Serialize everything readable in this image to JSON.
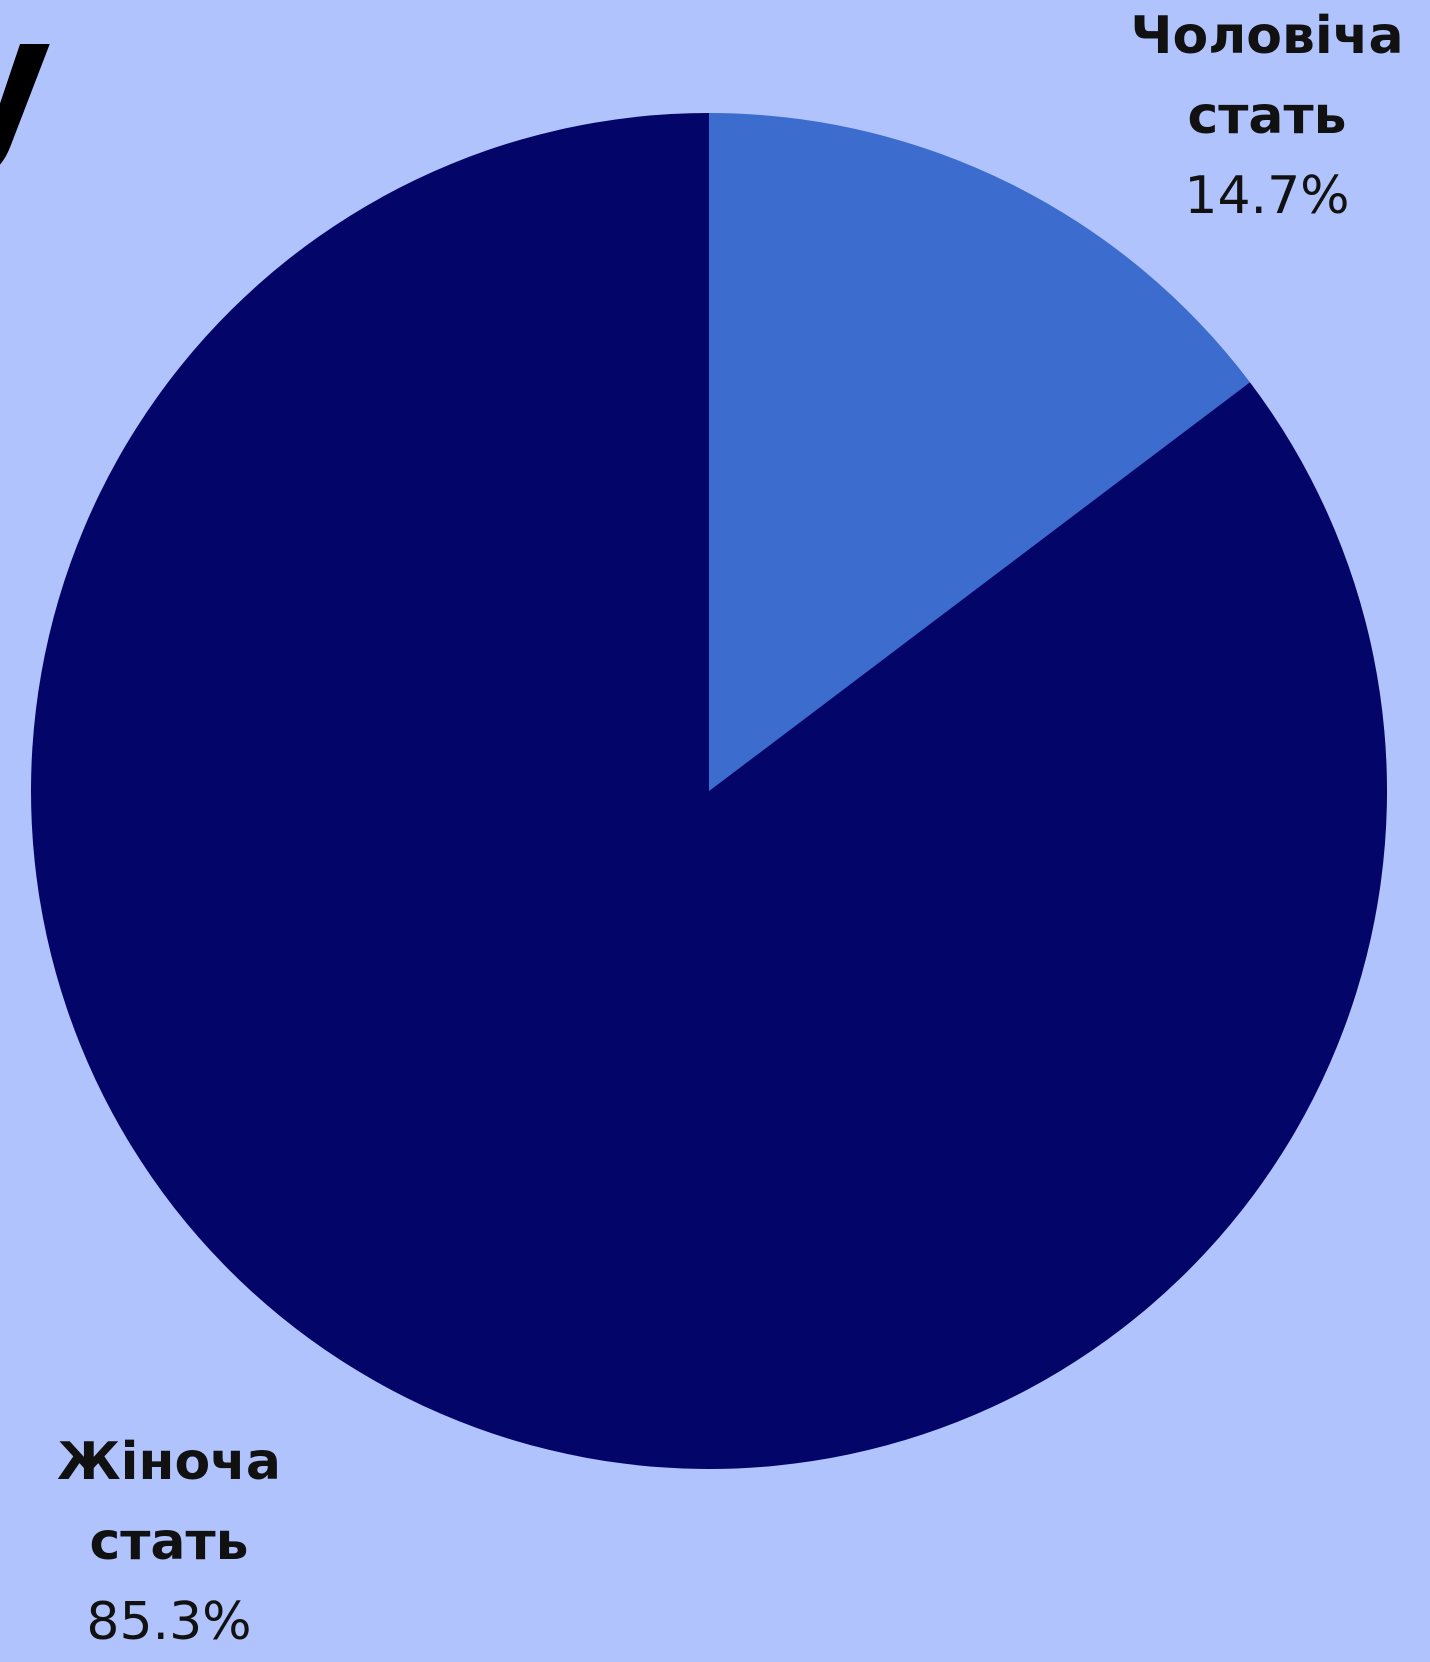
{
  "chart_data": {
    "type": "pie",
    "categories": [
      "Чоловіча стать",
      "Жіноча стать"
    ],
    "values": [
      14.7,
      85.3
    ],
    "colors": [
      "#3b6cce",
      "#040569"
    ],
    "labels": [
      {
        "line1": "Чоловіча",
        "line2": "стать",
        "pct": "14.7%"
      },
      {
        "line1": "Жіноча",
        "line2": "стать",
        "pct": "85.3%"
      }
    ]
  },
  "background": "#b1c3fd",
  "cropped_title_fragment": "y"
}
